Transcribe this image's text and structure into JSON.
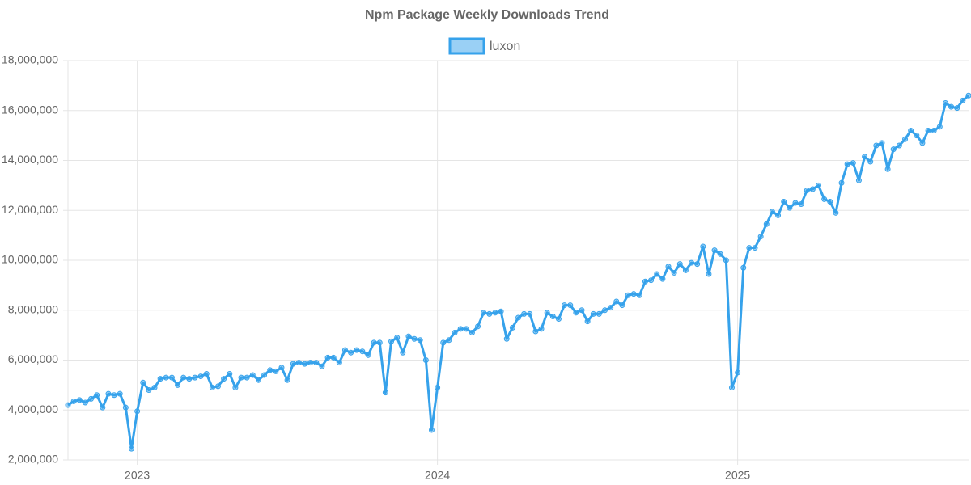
{
  "chart_data": {
    "type": "line",
    "title": "Npm Package Weekly Downloads Trend",
    "categories": [
      null,
      null,
      null,
      null,
      null,
      null,
      null,
      null,
      null,
      null,
      null,
      null,
      "2023",
      null,
      null,
      null,
      null,
      null,
      null,
      null,
      null,
      null,
      null,
      null,
      null,
      null,
      null,
      null,
      null,
      null,
      null,
      null,
      null,
      null,
      null,
      null,
      null,
      null,
      null,
      null,
      null,
      null,
      null,
      null,
      null,
      null,
      null,
      null,
      null,
      null,
      null,
      null,
      null,
      null,
      null,
      null,
      null,
      null,
      null,
      null,
      null,
      null,
      null,
      null,
      "2024",
      null,
      null,
      null,
      null,
      null,
      null,
      null,
      null,
      null,
      null,
      null,
      null,
      null,
      null,
      null,
      null,
      null,
      null,
      null,
      null,
      null,
      null,
      null,
      null,
      null,
      null,
      null,
      null,
      null,
      null,
      null,
      null,
      null,
      null,
      null,
      null,
      null,
      null,
      null,
      null,
      null,
      null,
      null,
      null,
      null,
      null,
      null,
      null,
      null,
      null,
      null,
      "2025",
      null,
      null,
      null,
      null,
      null,
      null,
      null,
      null,
      null,
      null,
      null,
      null,
      null,
      null,
      null,
      null,
      null,
      null,
      null,
      null,
      null,
      null,
      null,
      null,
      null,
      null,
      null,
      null,
      null,
      null,
      null,
      null,
      null,
      null,
      null,
      null,
      null,
      null,
      null,
      null
    ],
    "series": [
      {
        "name": "luxon",
        "color": "#36a2eb",
        "values": [
          4200000,
          4350000,
          4400000,
          4300000,
          4450000,
          4600000,
          4100000,
          4650000,
          4600000,
          4650000,
          4100000,
          2450000,
          3950000,
          5100000,
          4800000,
          4900000,
          5250000,
          5300000,
          5300000,
          5000000,
          5300000,
          5250000,
          5300000,
          5350000,
          5450000,
          4900000,
          4950000,
          5250000,
          5450000,
          4900000,
          5300000,
          5300000,
          5400000,
          5200000,
          5400000,
          5600000,
          5550000,
          5700000,
          5200000,
          5850000,
          5900000,
          5850000,
          5900000,
          5900000,
          5750000,
          6100000,
          6100000,
          5900000,
          6400000,
          6300000,
          6400000,
          6350000,
          6200000,
          6700000,
          6700000,
          4700000,
          6750000,
          6900000,
          6300000,
          6950000,
          6850000,
          6800000,
          6000000,
          3200000,
          4900000,
          6700000,
          6800000,
          7100000,
          7250000,
          7250000,
          7100000,
          7350000,
          7900000,
          7850000,
          7900000,
          7950000,
          6850000,
          7300000,
          7700000,
          7850000,
          7850000,
          7150000,
          7250000,
          7900000,
          7750000,
          7650000,
          8200000,
          8200000,
          7900000,
          8000000,
          7550000,
          7850000,
          7850000,
          8000000,
          8100000,
          8350000,
          8200000,
          8600000,
          8650000,
          8600000,
          9150000,
          9200000,
          9450000,
          9250000,
          9750000,
          9500000,
          9850000,
          9600000,
          9900000,
          9850000,
          10550000,
          9450000,
          10400000,
          10250000,
          10000000,
          4900000,
          5500000,
          9700000,
          10500000,
          10500000,
          10950000,
          11450000,
          11950000,
          11800000,
          12350000,
          12100000,
          12300000,
          12250000,
          12800000,
          12850000,
          13000000,
          12450000,
          12350000,
          11900000,
          13100000,
          13850000,
          13900000,
          13200000,
          14150000,
          13950000,
          14600000,
          14700000,
          13650000,
          14450000,
          14600000,
          14850000,
          15200000,
          15000000,
          14700000,
          15200000,
          15200000,
          15350000,
          16300000,
          16150000,
          16100000,
          16400000,
          16600000
        ]
      }
    ],
    "ylim": [
      2000000,
      18000000
    ],
    "yticks": [
      {
        "value": 2000000,
        "label": "2,000,000"
      },
      {
        "value": 4000000,
        "label": "4,000,000"
      },
      {
        "value": 6000000,
        "label": "6,000,000"
      },
      {
        "value": 8000000,
        "label": "8,000,000"
      },
      {
        "value": 10000000,
        "label": "10,000,000"
      },
      {
        "value": 12000000,
        "label": "12,000,000"
      },
      {
        "value": 14000000,
        "label": "14,000,000"
      },
      {
        "value": 16000000,
        "label": "16,000,000"
      },
      {
        "value": 18000000,
        "label": "18,000,000"
      }
    ],
    "grid": true
  }
}
